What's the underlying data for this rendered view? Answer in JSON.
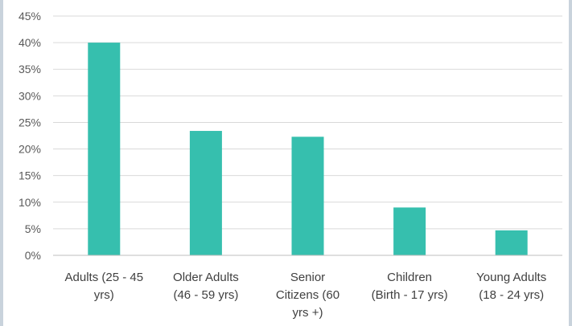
{
  "chart_data": {
    "type": "bar",
    "title": "",
    "xlabel": "",
    "ylabel": "",
    "categories": [
      [
        "Adults (25 - 45",
        "yrs)"
      ],
      [
        "Older Adults",
        "(46 - 59 yrs)"
      ],
      [
        "Senior",
        "Citizens (60",
        "yrs +)"
      ],
      [
        "Children",
        "(Birth - 17 yrs)"
      ],
      [
        "Young Adults",
        "(18 - 24 yrs)"
      ]
    ],
    "values": [
      40,
      23.4,
      22.3,
      9,
      4.7
    ],
    "ylim": [
      0,
      45
    ],
    "yticks": [
      "0%",
      "5%",
      "10%",
      "15%",
      "20%",
      "25%",
      "30%",
      "35%",
      "40%",
      "45%"
    ],
    "grid": true,
    "legend": "none",
    "colors": {
      "bar": "#36bfae",
      "grid": "#d9d9d9",
      "axis": "#bfbfbf"
    }
  }
}
